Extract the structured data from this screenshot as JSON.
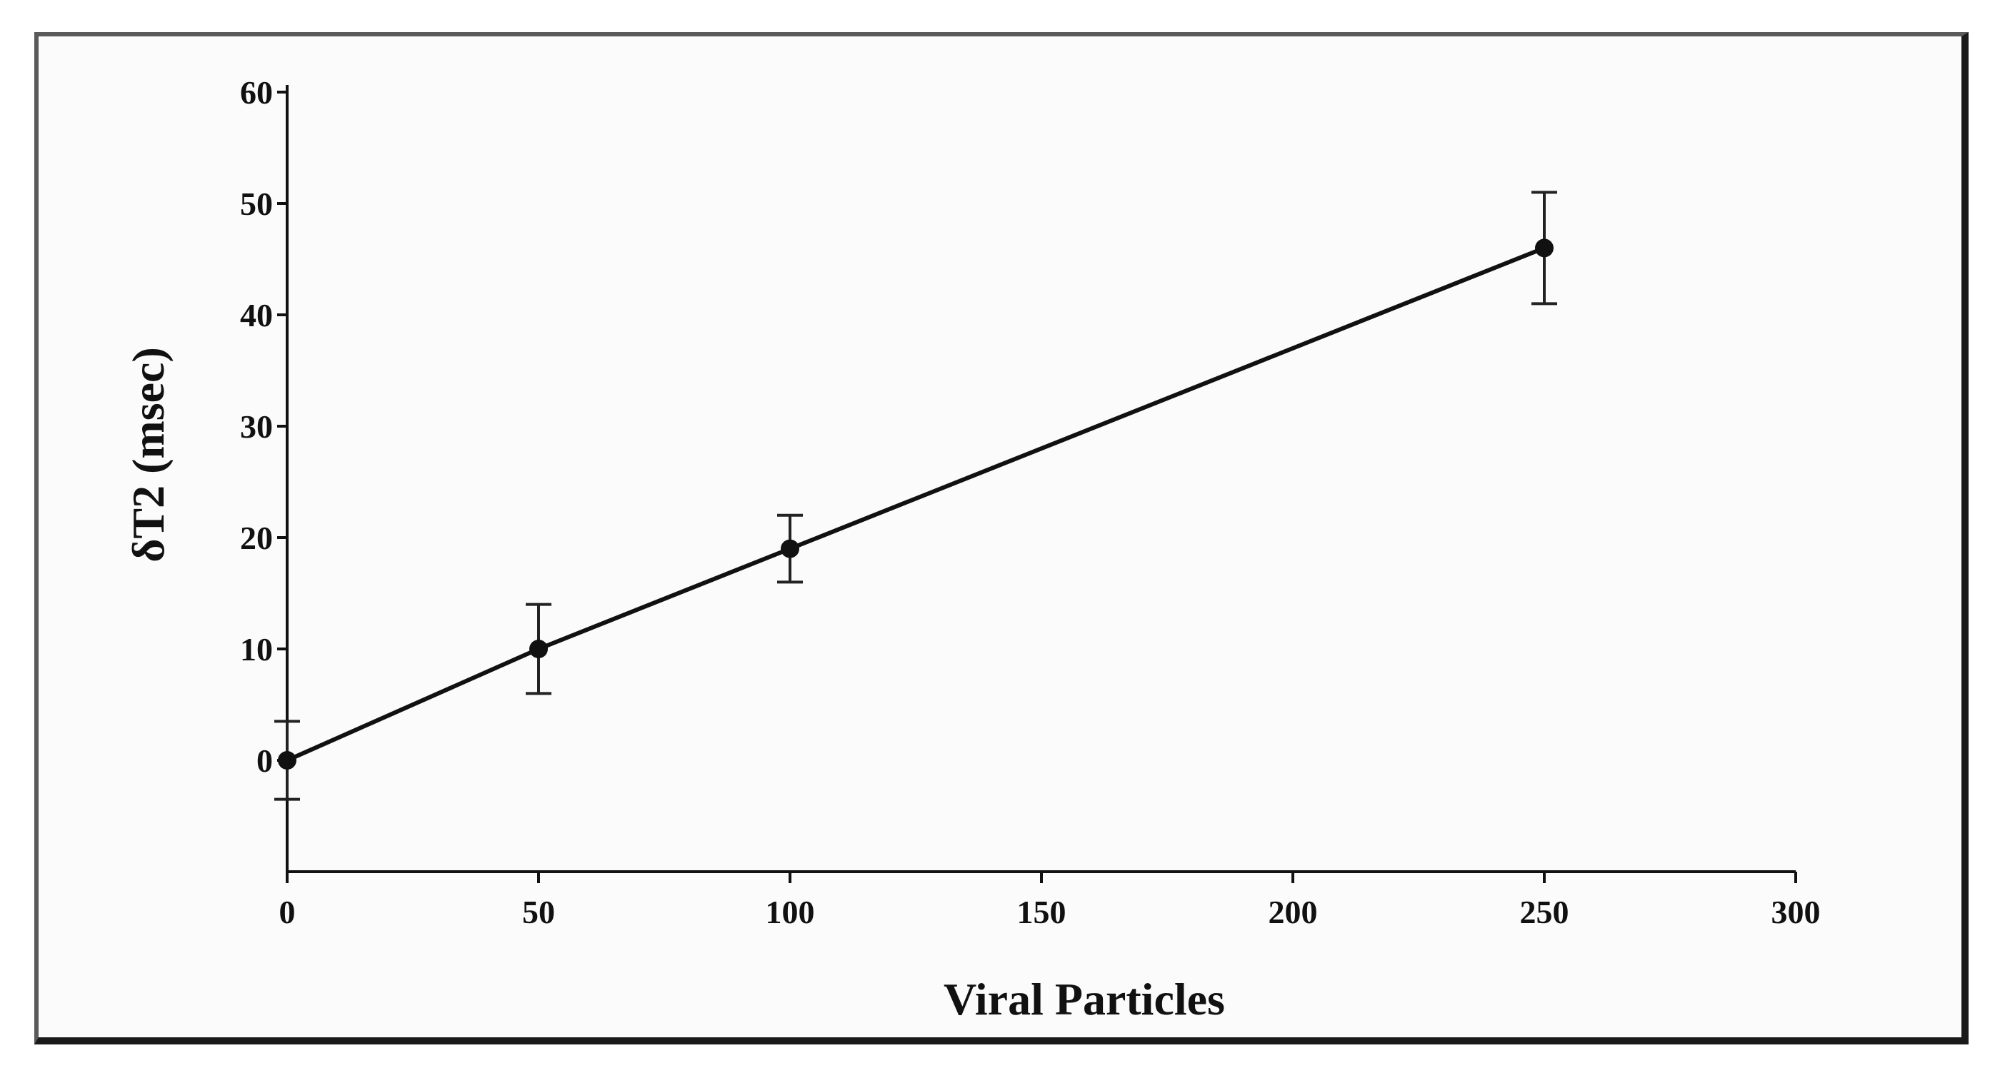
{
  "chart_data": {
    "type": "line",
    "title": "",
    "xlabel": "Viral Particles",
    "ylabel": "δT2 (msec)",
    "xlim": [
      0,
      300
    ],
    "ylim": [
      -10,
      60
    ],
    "x_ticks": [
      0,
      50,
      100,
      150,
      200,
      250,
      300
    ],
    "x_tick_labels": [
      "0",
      "50",
      "100",
      "150",
      "200",
      "250",
      "300"
    ],
    "y_ticks": [
      0,
      10,
      20,
      30,
      40,
      50,
      60
    ],
    "y_tick_labels": [
      "0",
      "10",
      "20",
      "30",
      "40",
      "50",
      "60"
    ],
    "grid": false,
    "series": [
      {
        "x": [
          0,
          50,
          100,
          250
        ],
        "y": [
          0,
          10,
          19,
          46
        ],
        "error": [
          3.5,
          4,
          3,
          5
        ]
      }
    ],
    "colors": {
      "line": "#111111",
      "background": "#fbfbfb"
    }
  }
}
